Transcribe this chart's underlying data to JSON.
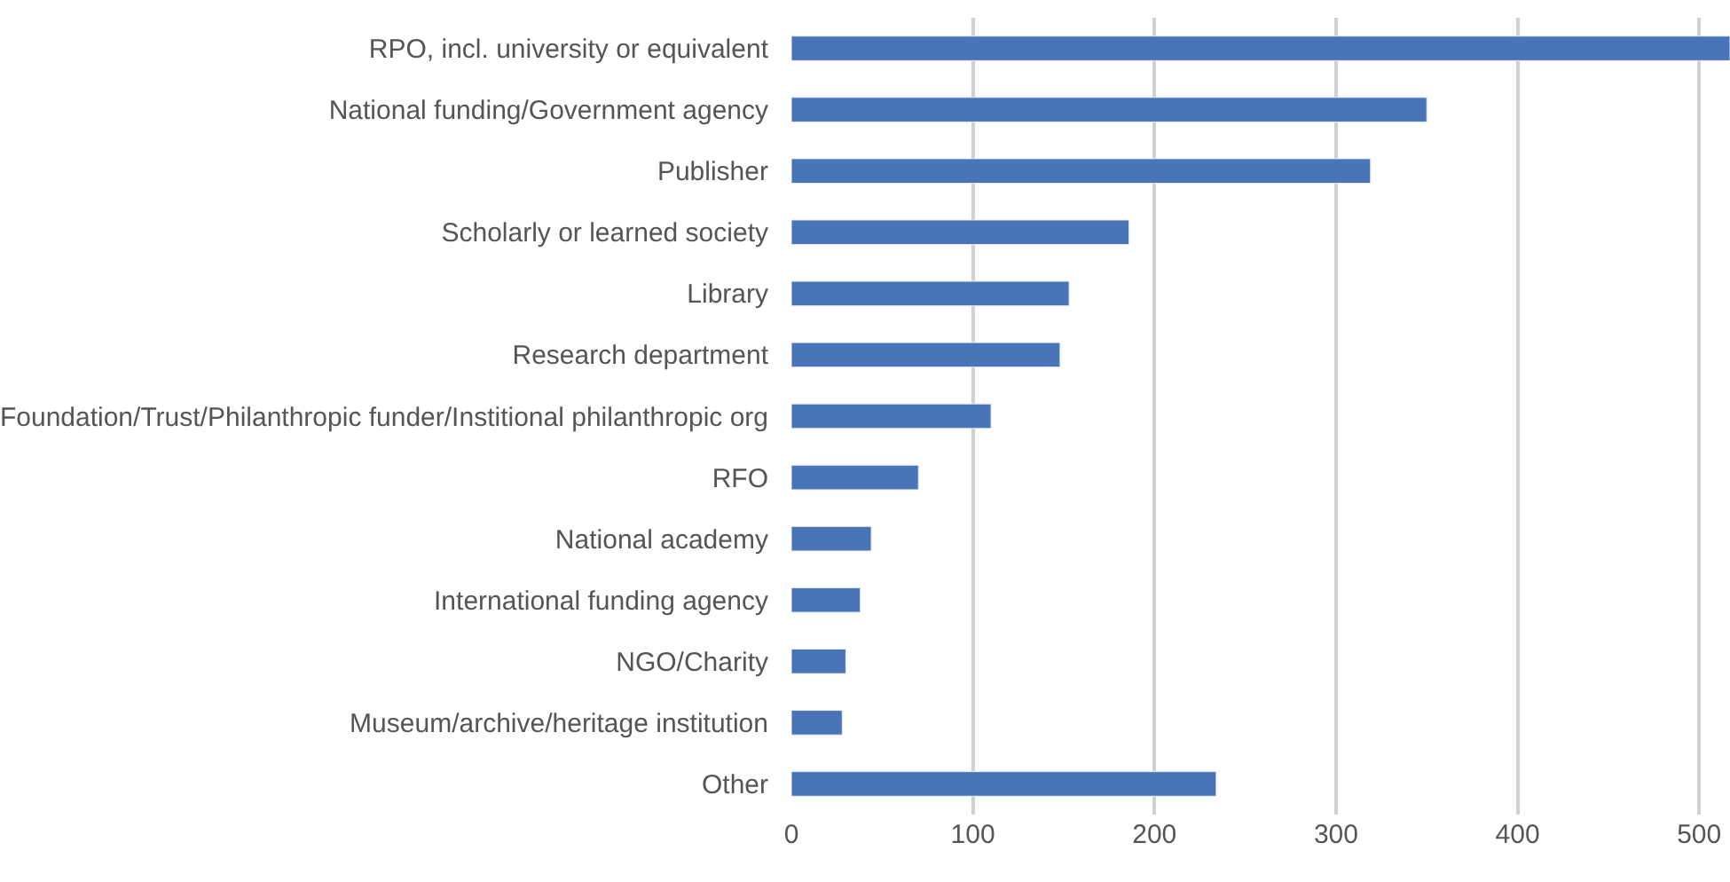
{
  "chart_data": {
    "type": "bar",
    "orientation": "horizontal",
    "categories": [
      "RPO, incl. university or equivalent",
      "National funding/Government agency",
      "Publisher",
      "Scholarly or learned society",
      "Library",
      "Research department",
      "Foundation/Trust/Philanthropic funder/Institional philanthropic org",
      "RFO",
      "National academy",
      "International funding agency",
      "NGO/Charity",
      "Museum/archive/heritage institution",
      "Other"
    ],
    "values": [
      517,
      350,
      319,
      186,
      153,
      148,
      110,
      70,
      44,
      38,
      30,
      28,
      234
    ],
    "color": "#4a74b8",
    "xlim": [
      0,
      517
    ],
    "xticks": [
      0,
      100,
      200,
      300,
      400,
      500
    ],
    "grid": "x",
    "legend": false
  }
}
